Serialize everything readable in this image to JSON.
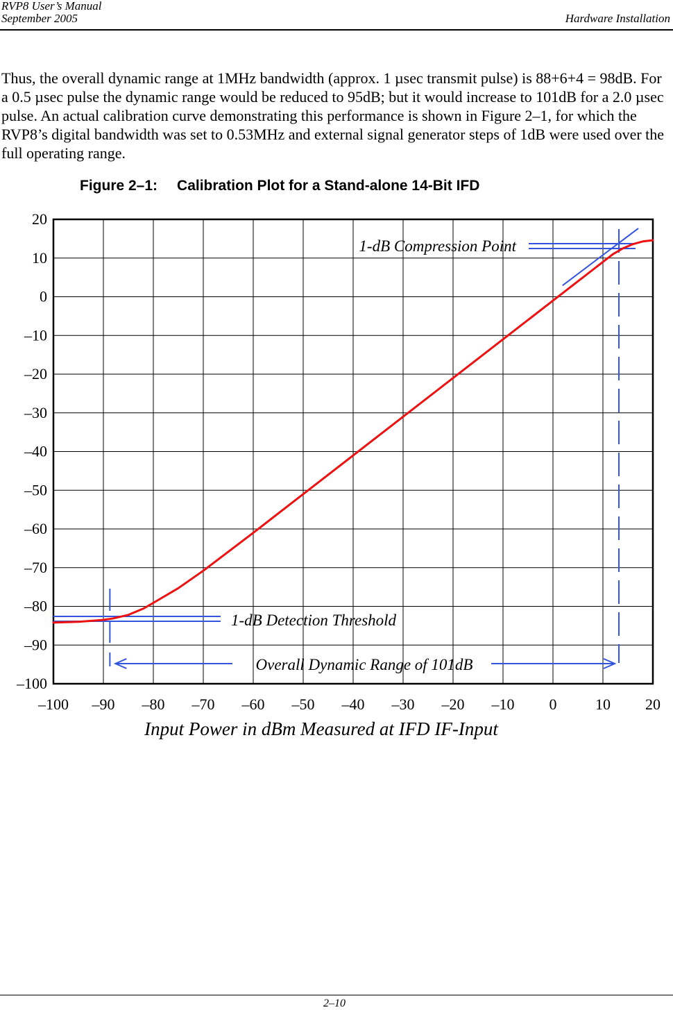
{
  "header": {
    "manual_title": "RVP8 User’s Manual",
    "date": "September 2005",
    "section": "Hardware Installation"
  },
  "body": {
    "paragraph": "Thus, the overall dynamic range at 1MHz bandwidth (approx. 1 µsec transmit pulse) is 88+6+4 = 98dB.  For a 0.5 µsec pulse the dynamic range would be reduced to 95dB; but it would increase to 101dB for a 2.0 µsec pulse.  An actual calibration curve demonstrating this performance is shown in Figure 2–1, for which the RVP8’s digital bandwidth was set to 0.53MHz and external signal generator steps of 1dB were used over the full operating range."
  },
  "figure": {
    "number": "Figure 2–1:",
    "title": "Calibration Plot for a Stand-alone 14-Bit IFD"
  },
  "chart_data": {
    "type": "line",
    "xlabel": "Input Power in dBm Measured at IFD IF-Input",
    "ylabel": "",
    "xlim": [
      -100,
      20
    ],
    "ylim": [
      -100,
      20
    ],
    "x_ticks": [
      "–100",
      "–90",
      "–80",
      "–70",
      "–60",
      "–50",
      "–40",
      "–30",
      "–20",
      "–10",
      "0",
      "10",
      "20"
    ],
    "y_ticks": [
      "20",
      "10",
      "0",
      "–10",
      "–20",
      "–30",
      "–40",
      "–50",
      "–60",
      "–70",
      "–80",
      "–90",
      "–100"
    ],
    "grid": true,
    "series": [
      {
        "color": "#ee1111",
        "x": [
          -100,
          -95,
          -90,
          -88,
          -85,
          -82,
          -80,
          -75,
          -70,
          -60,
          -50,
          -40,
          -30,
          -20,
          -10,
          0,
          2,
          5,
          8,
          10,
          12,
          14,
          16,
          18,
          20
        ],
        "y": [
          -84.2,
          -84.0,
          -83.5,
          -83.1,
          -82.2,
          -80.6,
          -79.1,
          -75.3,
          -70.8,
          -61.0,
          -51.0,
          -41.0,
          -31.0,
          -21.0,
          -11.0,
          -1.0,
          1.0,
          4.0,
          7.0,
          9.0,
          11.0,
          12.5,
          13.6,
          14.3,
          14.6
        ]
      },
      {
        "color": "#3355dd",
        "x": [
          2,
          17
        ],
        "y": [
          3,
          17.6
        ]
      }
    ],
    "annotations": {
      "compression_label": "1-dB Compression Point",
      "threshold_label": "1-dB Detection Threshold",
      "range_label": "Overall Dynamic Range of 101dB",
      "compression_x": 13.2,
      "threshold_x": -88.7,
      "annotation_color": "#3355dd"
    }
  },
  "footer": {
    "page_number": "2–10"
  }
}
